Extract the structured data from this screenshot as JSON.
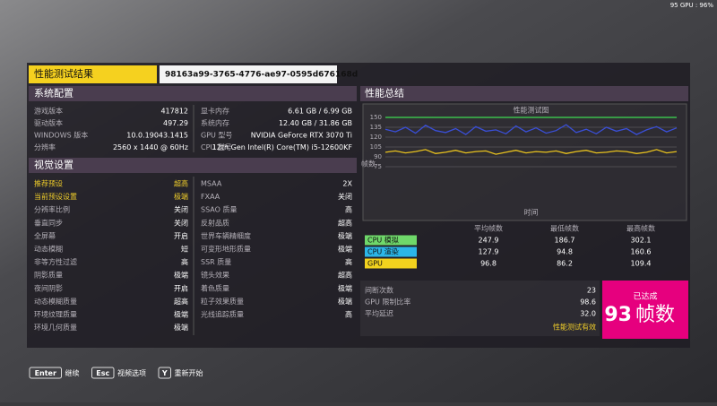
{
  "overlay": "95 GPU : 96%",
  "header": {
    "title": "性能测试结果",
    "id": "98163a99-3765-4776-ae97-0595d676168d"
  },
  "system": {
    "title": "系统配置",
    "left": [
      [
        "游戏版本",
        "417812"
      ],
      [
        "驱动版本",
        "497.29"
      ],
      [
        "WINDOWS 版本",
        "10.0.19043.1415"
      ],
      [
        "分辨率",
        "2560 x 1440 @ 60Hz"
      ]
    ],
    "right": [
      [
        "显卡内存",
        "6.61 GB / 6.99 GB"
      ],
      [
        "系统内存",
        "12.40 GB / 31.86 GB"
      ],
      [
        "GPU 型号",
        "NVIDIA GeForce RTX 3070 Ti"
      ],
      [
        "CPU 型号",
        "12th Gen Intel(R) Core(TM) i5-12600KF"
      ]
    ]
  },
  "visual": {
    "title": "视觉设置",
    "highlight_color": "#f2cf2a",
    "left": [
      {
        "label": "推荐预设",
        "value": "超高",
        "highlight": true
      },
      {
        "label": "当前预设设置",
        "value": "极端",
        "highlight": true
      },
      {
        "label": "分辨率比例",
        "value": "关闭"
      },
      {
        "label": "垂直同步",
        "value": "关闭"
      },
      {
        "label": "全屏幕",
        "value": "开启"
      },
      {
        "label": "动态模糊",
        "value": "短"
      },
      {
        "label": "非等方性过滤",
        "value": "高"
      },
      {
        "label": "阴影质量",
        "value": "极端"
      },
      {
        "label": "夜间阴影",
        "value": "开启"
      },
      {
        "label": "动态模糊质量",
        "value": "超高"
      },
      {
        "label": "环境纹理质量",
        "value": "极端"
      },
      {
        "label": "环境几何质量",
        "value": "极端"
      }
    ],
    "right": [
      {
        "label": "MSAA",
        "value": "2X"
      },
      {
        "label": "FXAA",
        "value": "关闭"
      },
      {
        "label": "SSAO 质量",
        "value": "高"
      },
      {
        "label": "反射品质",
        "value": "超高"
      },
      {
        "label": "世界车辆精细度",
        "value": "极端"
      },
      {
        "label": "可变形地形质量",
        "value": "极端"
      },
      {
        "label": "SSR 质量",
        "value": "高"
      },
      {
        "label": "镜头效果",
        "value": "超高"
      },
      {
        "label": "着色质量",
        "value": "极端"
      },
      {
        "label": "粒子效果质量",
        "value": "极端"
      },
      {
        "label": "光线追踪质量",
        "value": "高"
      }
    ]
  },
  "summary": {
    "title": "性能总结",
    "chart": {
      "type": "line",
      "title": "性能测试图",
      "y_label": "帧数",
      "x_label": "时间",
      "ylim": [
        15,
        150
      ],
      "yticks": [
        150,
        135,
        120,
        105,
        90,
        75
      ],
      "grid": true,
      "series": [
        {
          "color": "#3ddc52",
          "values": [
            150,
            150,
            150,
            150,
            150,
            150,
            150,
            150,
            150,
            150,
            150,
            150,
            150,
            150,
            150,
            150,
            150,
            150,
            150,
            150,
            150,
            150,
            150,
            150,
            150,
            150,
            150,
            150,
            150,
            150
          ]
        },
        {
          "color": "#3a4fd8",
          "values": [
            132,
            128,
            135,
            126,
            138,
            130,
            127,
            133,
            124,
            136,
            129,
            131,
            125,
            137,
            128,
            134,
            126,
            130,
            139,
            127,
            132,
            125,
            135,
            129,
            133,
            124,
            131,
            136,
            128,
            134
          ]
        },
        {
          "color": "#e8c21e",
          "values": [
            97,
            99,
            96,
            98,
            101,
            95,
            97,
            100,
            96,
            98,
            99,
            94,
            97,
            100,
            96,
            98,
            97,
            99,
            95,
            98,
            100,
            96,
            97,
            99,
            98,
            95,
            97,
            101,
            96,
            98
          ]
        }
      ]
    },
    "table": {
      "headers": [
        "平均帧数",
        "最低帧数",
        "最高帧数"
      ],
      "rows": [
        {
          "name": "CPU 模拟",
          "color": "#6fd86a",
          "values": [
            "247.9",
            "186.7",
            "302.1"
          ]
        },
        {
          "name": "CPU 渲染",
          "color": "#2bb6e8",
          "values": [
            "127.9",
            "94.8",
            "160.6"
          ]
        },
        {
          "name": "GPU",
          "color": "#f2d21e",
          "values": [
            "96.8",
            "86.2",
            "109.4"
          ]
        }
      ]
    },
    "stats": [
      [
        "间断次数",
        "23"
      ],
      [
        "GPU 限制比率",
        "98.6"
      ],
      [
        "平均延迟",
        "32.0"
      ]
    ],
    "valid": "性能测试有效",
    "result": {
      "caption": "已达成",
      "value": "93",
      "unit": "帧数"
    }
  },
  "footer": [
    {
      "key": "Enter",
      "label": "继续"
    },
    {
      "key": "Esc",
      "label": "视频选项"
    },
    {
      "key": "Y",
      "label": "重新开始"
    }
  ]
}
